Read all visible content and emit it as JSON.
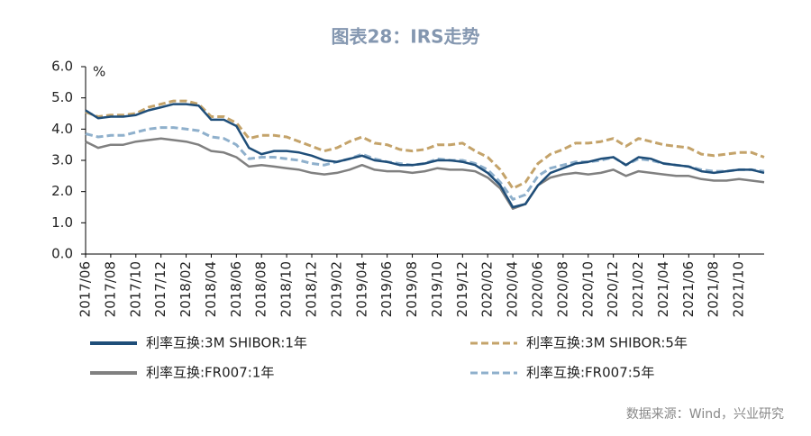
{
  "chart_data": {
    "type": "line",
    "title": "图表28：IRS走势",
    "y_unit": "%",
    "source": "数据来源：Wind，兴业研究",
    "categories": [
      "2017/06",
      null,
      "2017/08",
      null,
      "2017/10",
      null,
      "2017/12",
      null,
      "2018/02",
      null,
      "2018/04",
      null,
      "2018/06",
      null,
      "2018/08",
      null,
      "2018/10",
      null,
      "2018/12",
      null,
      "2019/02",
      null,
      "2019/04",
      null,
      "2019/06",
      null,
      "2019/08",
      null,
      "2019/10",
      null,
      "2019/12",
      null,
      "2020/02",
      null,
      "2020/04",
      null,
      "2020/06",
      null,
      "2020/08",
      null,
      "2020/10",
      null,
      "2020/12",
      null,
      "2021/02",
      null,
      "2021/04",
      null,
      "2021/06",
      null,
      "2021/08",
      null,
      "2021/10",
      null,
      null
    ],
    "series": [
      {
        "name": "利率互换:3M SHIBOR:1年",
        "color": "#1f4e79",
        "dash": "solid",
        "values": [
          4.6,
          4.35,
          4.4,
          4.4,
          4.45,
          4.6,
          4.7,
          4.8,
          4.8,
          4.75,
          4.3,
          4.3,
          4.1,
          3.4,
          3.2,
          3.3,
          3.3,
          3.25,
          3.15,
          3.0,
          2.95,
          3.05,
          3.15,
          3.0,
          2.95,
          2.85,
          2.85,
          2.9,
          3.0,
          3.0,
          2.95,
          2.85,
          2.6,
          2.2,
          1.5,
          1.6,
          2.2,
          2.6,
          2.75,
          2.9,
          2.95,
          3.05,
          3.1,
          2.85,
          3.1,
          3.05,
          2.9,
          2.85,
          2.8,
          2.65,
          2.6,
          2.65,
          2.7,
          2.7,
          2.6
        ]
      },
      {
        "name": "利率互换:3M SHIBOR:5年",
        "color": "#c4a36a",
        "dash": "dashed",
        "values": [
          4.55,
          4.4,
          4.45,
          4.45,
          4.5,
          4.7,
          4.8,
          4.9,
          4.9,
          4.8,
          4.4,
          4.4,
          4.2,
          3.7,
          3.8,
          3.8,
          3.75,
          3.6,
          3.45,
          3.3,
          3.4,
          3.6,
          3.75,
          3.55,
          3.5,
          3.35,
          3.3,
          3.35,
          3.5,
          3.5,
          3.55,
          3.3,
          3.1,
          2.7,
          2.1,
          2.3,
          2.9,
          3.2,
          3.35,
          3.55,
          3.55,
          3.6,
          3.7,
          3.45,
          3.7,
          3.6,
          3.5,
          3.45,
          3.4,
          3.2,
          3.15,
          3.2,
          3.25,
          3.25,
          3.1
        ]
      },
      {
        "name": "利率互换:FR007:1年",
        "color": "#808080",
        "dash": "solid",
        "values": [
          3.6,
          3.4,
          3.5,
          3.5,
          3.6,
          3.65,
          3.7,
          3.65,
          3.6,
          3.5,
          3.3,
          3.25,
          3.1,
          2.8,
          2.85,
          2.8,
          2.75,
          2.7,
          2.6,
          2.55,
          2.6,
          2.7,
          2.85,
          2.7,
          2.65,
          2.65,
          2.6,
          2.65,
          2.75,
          2.7,
          2.7,
          2.65,
          2.45,
          2.1,
          1.45,
          1.6,
          2.2,
          2.45,
          2.55,
          2.6,
          2.55,
          2.6,
          2.7,
          2.5,
          2.65,
          2.6,
          2.55,
          2.5,
          2.5,
          2.4,
          2.35,
          2.35,
          2.4,
          2.35,
          2.3
        ]
      },
      {
        "name": "利率互换:FR007:5年",
        "color": "#8fb0cc",
        "dash": "dashed",
        "values": [
          3.85,
          3.75,
          3.8,
          3.8,
          3.9,
          4.0,
          4.05,
          4.05,
          4.0,
          3.95,
          3.75,
          3.7,
          3.5,
          3.05,
          3.1,
          3.1,
          3.05,
          3.0,
          2.9,
          2.85,
          2.95,
          3.05,
          3.2,
          3.05,
          2.95,
          2.9,
          2.85,
          2.9,
          3.05,
          3.0,
          3.0,
          2.9,
          2.7,
          2.3,
          1.75,
          1.9,
          2.5,
          2.75,
          2.85,
          2.95,
          2.95,
          3.0,
          3.1,
          2.85,
          3.05,
          3.0,
          2.9,
          2.85,
          2.8,
          2.7,
          2.65,
          2.65,
          2.7,
          2.7,
          2.65
        ]
      }
    ],
    "ylim": [
      0,
      6
    ],
    "yticks": [
      {
        "value": 0,
        "label": "0.0"
      },
      {
        "value": 1,
        "label": "1.0"
      },
      {
        "value": 2,
        "label": "2.0"
      },
      {
        "value": 3,
        "label": "3.0"
      },
      {
        "value": 4,
        "label": "4.0"
      },
      {
        "value": 5,
        "label": "5.0"
      },
      {
        "value": 6,
        "label": "6.0"
      }
    ],
    "grid": false
  }
}
